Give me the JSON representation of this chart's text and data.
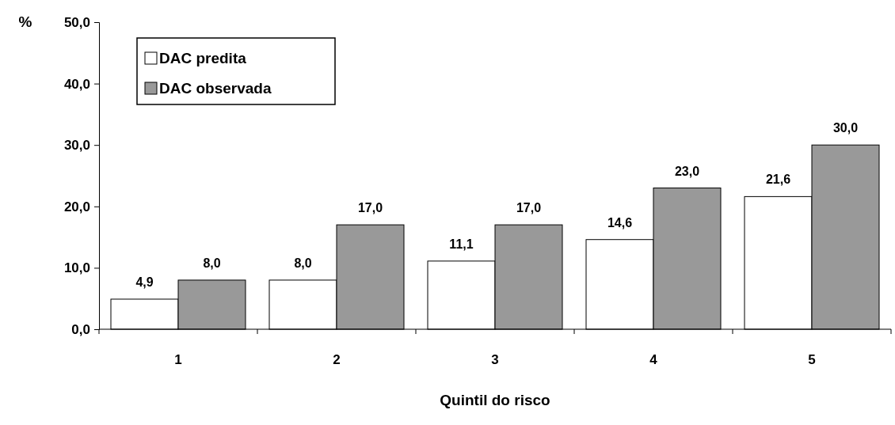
{
  "chart_data": {
    "type": "bar",
    "ylabel": "%",
    "xlabel": "Quintil do risco",
    "categories": [
      "1",
      "2",
      "3",
      "4",
      "5"
    ],
    "series": [
      {
        "name": "DAC predita",
        "color": "#ffffff",
        "values": [
          4.9,
          8.0,
          11.1,
          14.6,
          21.6
        ],
        "value_labels": [
          "4,9",
          "8,0",
          "11,1",
          "14,6",
          "21,6"
        ]
      },
      {
        "name": "DAC observada",
        "color": "#999999",
        "values": [
          8.0,
          17.0,
          17.0,
          23.0,
          30.0
        ],
        "value_labels": [
          "8,0",
          "17,0",
          "17,0",
          "23,0",
          "30,0"
        ]
      }
    ],
    "ylim": [
      0,
      50
    ],
    "yticks": [
      {
        "value": 0,
        "label": "0,0"
      },
      {
        "value": 10,
        "label": "10,0"
      },
      {
        "value": 20,
        "label": "20,0"
      },
      {
        "value": 30,
        "label": "30,0"
      },
      {
        "value": 40,
        "label": "40,0"
      },
      {
        "value": 50,
        "label": "50,0"
      }
    ],
    "grid": false,
    "legend": "top left"
  }
}
